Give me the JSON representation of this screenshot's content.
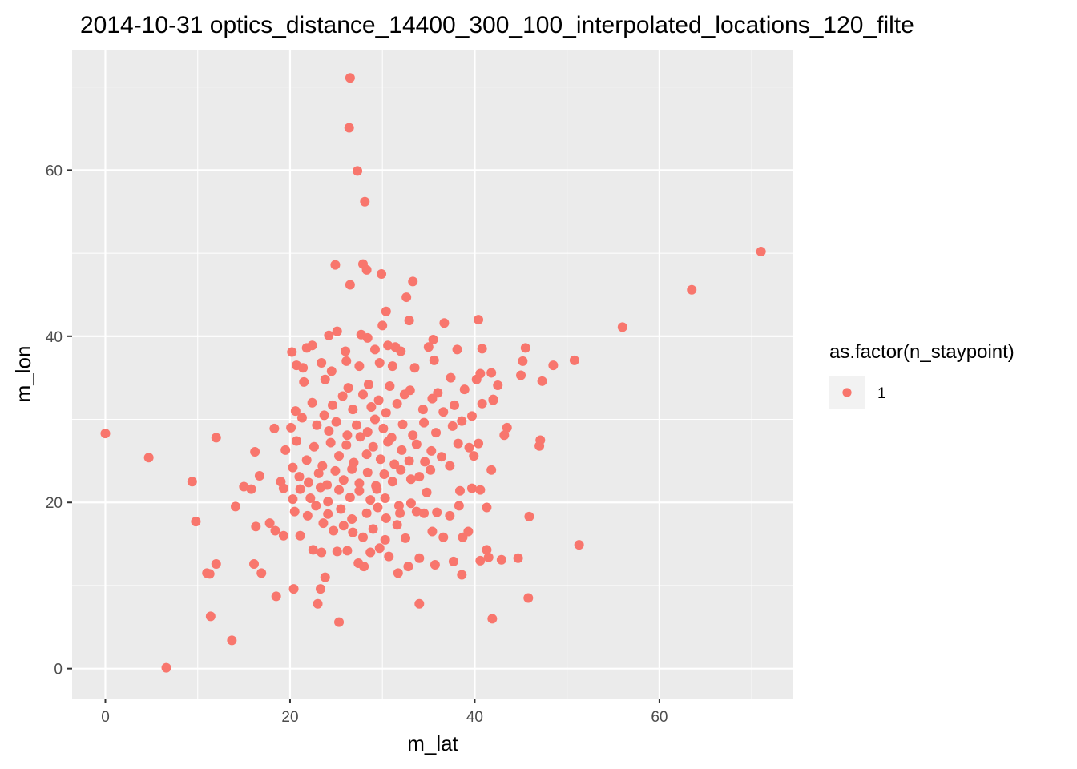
{
  "chart_data": {
    "type": "scatter",
    "title": "2014-10-31 optics_distance_14400_300_100_interpolated_locations_120_filte",
    "xlabel": "m_lat",
    "ylabel": "m_lon",
    "xlim": [
      -3.6,
      74.5
    ],
    "ylim": [
      -3.6,
      74.5
    ],
    "x_ticks": [
      0,
      20,
      40,
      60
    ],
    "y_ticks": [
      0,
      20,
      40,
      60
    ],
    "x_tick_labels": [
      "0",
      "20",
      "40",
      "60"
    ],
    "y_tick_labels": [
      "0",
      "20",
      "40",
      "60"
    ],
    "x_minor_ticks": [
      10,
      30,
      50,
      70
    ],
    "y_minor_ticks": [
      10,
      30,
      50,
      70
    ],
    "grid": true,
    "legend": {
      "title": "as.factor(n_staypoint)",
      "position": "right",
      "entries": [
        {
          "label": "1",
          "color": "#F8766D"
        }
      ]
    },
    "colors": {
      "point": "#F8766D",
      "panel": "#EBEBEB",
      "grid": "#FFFFFF"
    },
    "series": [
      {
        "name": "1",
        "points": [
          [
            26.5,
            71.1
          ],
          [
            26.4,
            65.1
          ],
          [
            27.3,
            59.9
          ],
          [
            28.1,
            56.2
          ],
          [
            71.0,
            50.2
          ],
          [
            63.5,
            45.6
          ],
          [
            56.0,
            41.1
          ],
          [
            24.9,
            48.6
          ],
          [
            27.9,
            48.7
          ],
          [
            28.3,
            48.0
          ],
          [
            26.5,
            46.2
          ],
          [
            29.9,
            47.5
          ],
          [
            33.3,
            46.6
          ],
          [
            32.6,
            44.7
          ],
          [
            30.4,
            43.0
          ],
          [
            30.0,
            41.3
          ],
          [
            32.9,
            41.9
          ],
          [
            36.7,
            41.6
          ],
          [
            40.4,
            42.0
          ],
          [
            24.2,
            40.1
          ],
          [
            25.1,
            40.6
          ],
          [
            27.7,
            40.2
          ],
          [
            28.4,
            39.8
          ],
          [
            20.2,
            38.1
          ],
          [
            21.8,
            38.6
          ],
          [
            22.4,
            38.9
          ],
          [
            26.0,
            38.2
          ],
          [
            29.2,
            38.4
          ],
          [
            30.6,
            38.9
          ],
          [
            31.4,
            38.7
          ],
          [
            32.0,
            38.2
          ],
          [
            35.5,
            39.6
          ],
          [
            35.0,
            38.7
          ],
          [
            38.1,
            38.4
          ],
          [
            40.8,
            38.5
          ],
          [
            45.5,
            38.6
          ],
          [
            20.7,
            36.5
          ],
          [
            21.4,
            36.2
          ],
          [
            23.4,
            36.8
          ],
          [
            24.5,
            35.8
          ],
          [
            26.1,
            37.0
          ],
          [
            27.5,
            36.4
          ],
          [
            29.7,
            36.8
          ],
          [
            31.1,
            36.4
          ],
          [
            33.5,
            36.2
          ],
          [
            35.6,
            37.1
          ],
          [
            37.4,
            35.0
          ],
          [
            40.2,
            34.8
          ],
          [
            41.8,
            35.6
          ],
          [
            45.2,
            37.0
          ],
          [
            45.0,
            35.3
          ],
          [
            47.3,
            34.6
          ],
          [
            48.5,
            36.5
          ],
          [
            50.8,
            37.1
          ],
          [
            21.5,
            34.5
          ],
          [
            23.8,
            34.8
          ],
          [
            26.3,
            33.8
          ],
          [
            28.5,
            34.2
          ],
          [
            30.8,
            34.0
          ],
          [
            33.0,
            33.5
          ],
          [
            36.0,
            33.2
          ],
          [
            38.9,
            33.6
          ],
          [
            40.6,
            35.5
          ],
          [
            42.5,
            34.1
          ],
          [
            42.0,
            32.4
          ],
          [
            20.6,
            31.0
          ],
          [
            21.3,
            30.2
          ],
          [
            22.4,
            32.0
          ],
          [
            23.7,
            30.5
          ],
          [
            24.6,
            31.7
          ],
          [
            25.7,
            32.8
          ],
          [
            26.8,
            31.2
          ],
          [
            27.9,
            33.0
          ],
          [
            28.8,
            31.5
          ],
          [
            29.6,
            32.3
          ],
          [
            30.4,
            30.8
          ],
          [
            31.6,
            31.9
          ],
          [
            32.4,
            33.0
          ],
          [
            34.4,
            31.2
          ],
          [
            35.4,
            32.5
          ],
          [
            36.6,
            30.9
          ],
          [
            37.8,
            31.7
          ],
          [
            39.7,
            30.4
          ],
          [
            40.8,
            31.9
          ],
          [
            42.0,
            32.3
          ],
          [
            20.1,
            29.0
          ],
          [
            22.9,
            29.3
          ],
          [
            24.2,
            28.6
          ],
          [
            25.0,
            29.7
          ],
          [
            26.2,
            28.1
          ],
          [
            27.2,
            29.3
          ],
          [
            28.4,
            28.5
          ],
          [
            29.2,
            30.0
          ],
          [
            30.1,
            28.9
          ],
          [
            31.0,
            27.8
          ],
          [
            32.2,
            29.4
          ],
          [
            33.3,
            28.1
          ],
          [
            34.5,
            29.6
          ],
          [
            35.8,
            28.4
          ],
          [
            37.6,
            29.2
          ],
          [
            38.6,
            29.8
          ],
          [
            43.5,
            29.0
          ],
          [
            43.2,
            28.1
          ],
          [
            47.1,
            27.5
          ],
          [
            47.0,
            26.8
          ],
          [
            18.3,
            28.9
          ],
          [
            19.5,
            26.3
          ],
          [
            20.7,
            27.4
          ],
          [
            21.8,
            25.1
          ],
          [
            22.6,
            26.7
          ],
          [
            23.5,
            24.4
          ],
          [
            24.4,
            27.2
          ],
          [
            25.3,
            25.6
          ],
          [
            26.1,
            26.9
          ],
          [
            26.9,
            24.8
          ],
          [
            27.6,
            27.9
          ],
          [
            28.3,
            25.8
          ],
          [
            29.0,
            26.7
          ],
          [
            29.8,
            25.2
          ],
          [
            30.6,
            27.3
          ],
          [
            31.3,
            24.6
          ],
          [
            32.1,
            26.3
          ],
          [
            32.9,
            25.0
          ],
          [
            33.7,
            27.0
          ],
          [
            34.6,
            24.9
          ],
          [
            35.3,
            26.2
          ],
          [
            36.4,
            25.5
          ],
          [
            37.3,
            24.4
          ],
          [
            38.2,
            27.1
          ],
          [
            39.4,
            26.6
          ],
          [
            40.4,
            27.1
          ],
          [
            39.9,
            25.6
          ],
          [
            20.3,
            24.2
          ],
          [
            21.0,
            23.1
          ],
          [
            22.0,
            22.4
          ],
          [
            23.1,
            23.5
          ],
          [
            24.0,
            22.1
          ],
          [
            24.9,
            23.8
          ],
          [
            25.8,
            22.7
          ],
          [
            26.7,
            24.0
          ],
          [
            27.5,
            22.3
          ],
          [
            28.4,
            23.6
          ],
          [
            29.3,
            22.0
          ],
          [
            30.2,
            23.4
          ],
          [
            31.1,
            22.5
          ],
          [
            32.0,
            23.9
          ],
          [
            33.1,
            22.8
          ],
          [
            34.0,
            23.1
          ],
          [
            35.2,
            23.9
          ],
          [
            38.4,
            21.4
          ],
          [
            39.7,
            21.7
          ],
          [
            41.8,
            23.9
          ],
          [
            16.2,
            26.1
          ],
          [
            15.0,
            21.9
          ],
          [
            15.8,
            21.6
          ],
          [
            16.7,
            23.2
          ],
          [
            19.0,
            22.5
          ],
          [
            19.3,
            21.7
          ],
          [
            20.3,
            20.4
          ],
          [
            21.1,
            21.6
          ],
          [
            22.2,
            20.5
          ],
          [
            23.3,
            21.8
          ],
          [
            24.1,
            20.1
          ],
          [
            25.3,
            21.5
          ],
          [
            26.5,
            20.6
          ],
          [
            27.5,
            21.4
          ],
          [
            28.7,
            20.3
          ],
          [
            29.4,
            21.6
          ],
          [
            30.3,
            20.5
          ],
          [
            31.8,
            19.6
          ],
          [
            33.1,
            19.9
          ],
          [
            34.8,
            21.2
          ],
          [
            40.6,
            21.5
          ],
          [
            41.3,
            19.4
          ],
          [
            14.1,
            19.5
          ],
          [
            20.5,
            18.9
          ],
          [
            21.9,
            18.4
          ],
          [
            22.8,
            19.6
          ],
          [
            24.1,
            18.6
          ],
          [
            25.5,
            19.2
          ],
          [
            26.7,
            18.0
          ],
          [
            28.3,
            18.7
          ],
          [
            29.5,
            19.4
          ],
          [
            30.4,
            18.1
          ],
          [
            31.9,
            18.7
          ],
          [
            33.7,
            18.9
          ],
          [
            34.5,
            18.7
          ],
          [
            35.9,
            18.8
          ],
          [
            37.3,
            18.4
          ],
          [
            38.3,
            19.6
          ],
          [
            45.9,
            18.3
          ],
          [
            9.8,
            17.7
          ],
          [
            16.3,
            17.1
          ],
          [
            17.8,
            17.5
          ],
          [
            18.4,
            16.6
          ],
          [
            19.3,
            16.0
          ],
          [
            21.1,
            16.0
          ],
          [
            23.6,
            17.5
          ],
          [
            24.7,
            16.6
          ],
          [
            25.8,
            17.2
          ],
          [
            26.8,
            16.4
          ],
          [
            27.9,
            15.8
          ],
          [
            29.0,
            16.8
          ],
          [
            30.3,
            15.5
          ],
          [
            31.6,
            17.3
          ],
          [
            32.5,
            15.7
          ],
          [
            35.4,
            16.5
          ],
          [
            36.6,
            15.8
          ],
          [
            38.7,
            15.8
          ],
          [
            39.3,
            16.5
          ],
          [
            51.3,
            14.9
          ],
          [
            11.3,
            11.4
          ],
          [
            11.0,
            11.5
          ],
          [
            12.0,
            12.6
          ],
          [
            16.1,
            12.6
          ],
          [
            16.9,
            11.5
          ],
          [
            22.5,
            14.3
          ],
          [
            23.4,
            14.0
          ],
          [
            25.1,
            14.1
          ],
          [
            26.2,
            14.2
          ],
          [
            27.4,
            12.7
          ],
          [
            28.0,
            12.3
          ],
          [
            28.7,
            14.0
          ],
          [
            29.7,
            14.5
          ],
          [
            30.7,
            13.5
          ],
          [
            31.7,
            11.5
          ],
          [
            32.8,
            12.3
          ],
          [
            34.0,
            13.3
          ],
          [
            35.7,
            12.5
          ],
          [
            37.7,
            12.9
          ],
          [
            38.6,
            11.3
          ],
          [
            40.6,
            13.0
          ],
          [
            41.3,
            14.3
          ],
          [
            41.5,
            13.4
          ],
          [
            42.9,
            13.1
          ],
          [
            44.7,
            13.3
          ],
          [
            18.5,
            8.7
          ],
          [
            20.4,
            9.6
          ],
          [
            23.3,
            9.6
          ],
          [
            23.8,
            11.0
          ],
          [
            23.0,
            7.8
          ],
          [
            34.0,
            7.8
          ],
          [
            45.8,
            8.5
          ],
          [
            0.0,
            28.3
          ],
          [
            4.7,
            25.4
          ],
          [
            9.4,
            22.5
          ],
          [
            12.0,
            27.8
          ],
          [
            11.4,
            6.3
          ],
          [
            13.7,
            3.4
          ],
          [
            6.6,
            0.1
          ],
          [
            25.3,
            5.6
          ],
          [
            41.9,
            6.0
          ]
        ]
      }
    ]
  }
}
